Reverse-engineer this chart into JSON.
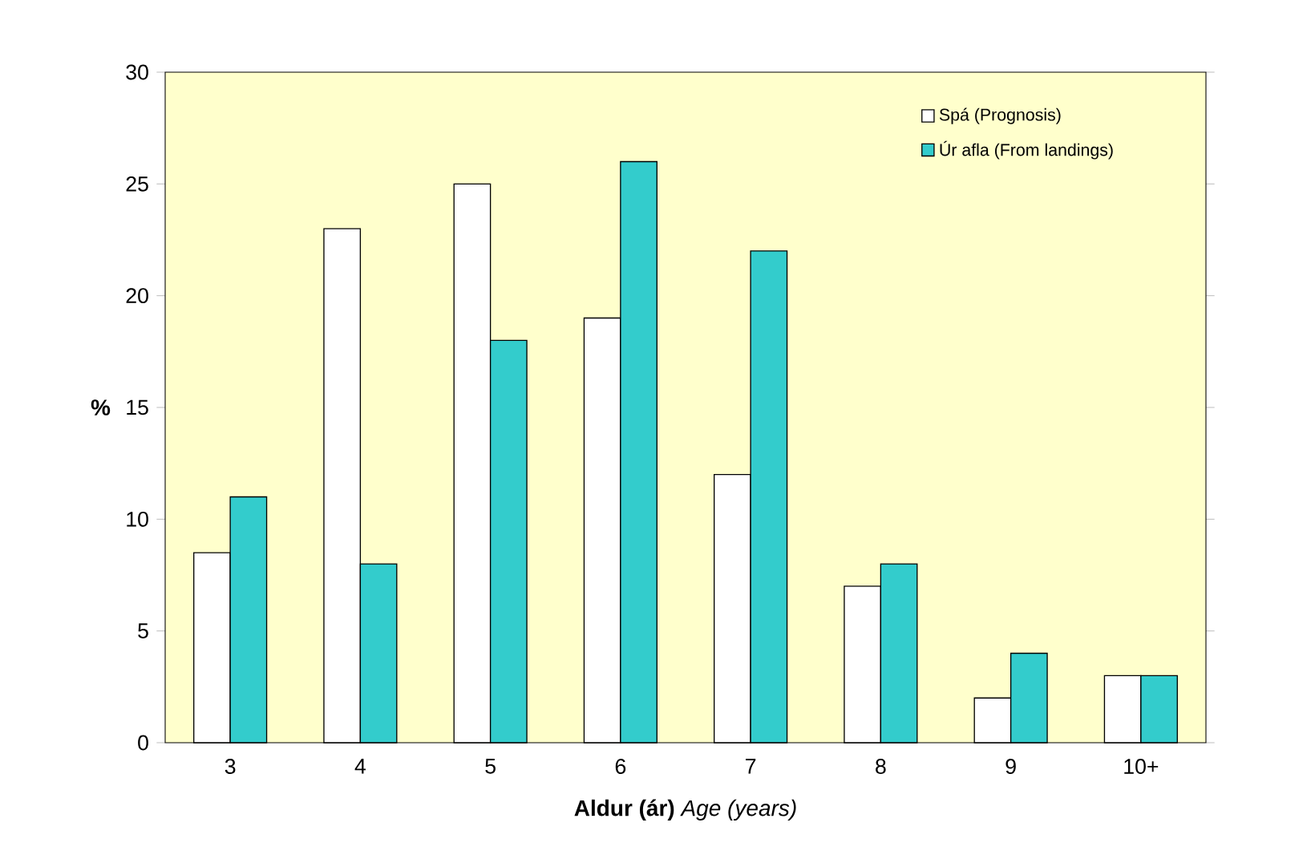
{
  "chart_data": {
    "type": "bar",
    "xlabel": "**Aldur (ár)** *Age (years)*",
    "ylabel": "**%**",
    "categories": [
      "3",
      "4",
      "5",
      "6",
      "7",
      "8",
      "9",
      "10+"
    ],
    "series": [
      {
        "name": "Spá (Prognosis)",
        "color": "#ffffff",
        "values": [
          8.5,
          23,
          25,
          19,
          12,
          7,
          2,
          3
        ]
      },
      {
        "name": "Úr afla (From landings)",
        "color": "#33cccc",
        "values": [
          11,
          8,
          18,
          26,
          22,
          8,
          4,
          3
        ]
      }
    ],
    "ylim": [
      0,
      30
    ],
    "yticks": [
      0,
      5,
      10,
      15,
      20,
      25,
      30
    ],
    "legend": "top right"
  }
}
